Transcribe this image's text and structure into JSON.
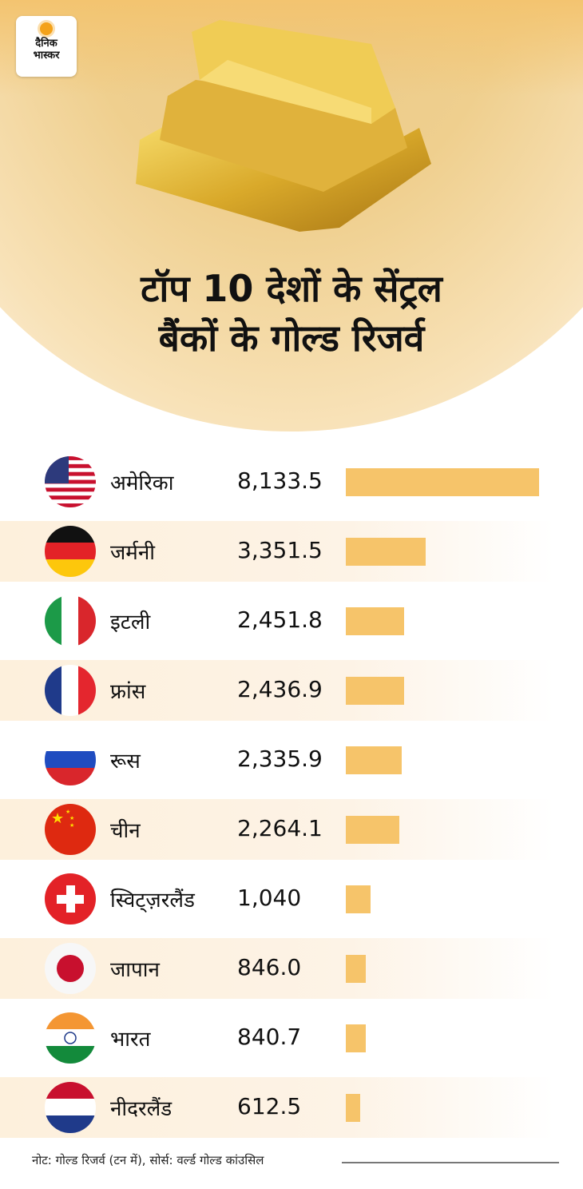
{
  "logo": {
    "line1": "दैनिक",
    "line2": "भास्कर"
  },
  "title": {
    "line1": "टॉप 10 देशों के सेंट्रल",
    "line2": "बैंकों के गोल्ड रिजर्व"
  },
  "colors": {
    "bar": "#f6c46a",
    "stripe": "#fdf0dc"
  },
  "chart_data": {
    "type": "bar",
    "orientation": "horizontal",
    "title": "टॉप 10 देशों के सेंट्रल बैंकों के गोल्ड रिजर्व",
    "unit": "टन",
    "categories": [
      "अमेरिका",
      "जर्मनी",
      "इटली",
      "फ्रांस",
      "रूस",
      "चीन",
      "स्विट्ज़रलैंड",
      "जापान",
      "भारत",
      "नीदरलैंड"
    ],
    "labels": [
      "8,133.5",
      "3,351.5",
      "2,451.8",
      "2,436.9",
      "2,335.9",
      "2,264.1",
      "1,040",
      "846.0",
      "840.7",
      "612.5"
    ],
    "values": [
      8133.5,
      3351.5,
      2451.8,
      2436.9,
      2335.9,
      2264.1,
      1040,
      846.0,
      840.7,
      612.5
    ],
    "flags": [
      "usa",
      "germany",
      "italy",
      "france",
      "russia",
      "china",
      "switzerland",
      "japan",
      "india",
      "netherlands"
    ],
    "xlim": [
      0,
      8133.5
    ]
  },
  "note": "नोट: गोल्ड रिजर्व (टन में), सोर्स: वर्ल्ड गोल्ड कांउसिल"
}
